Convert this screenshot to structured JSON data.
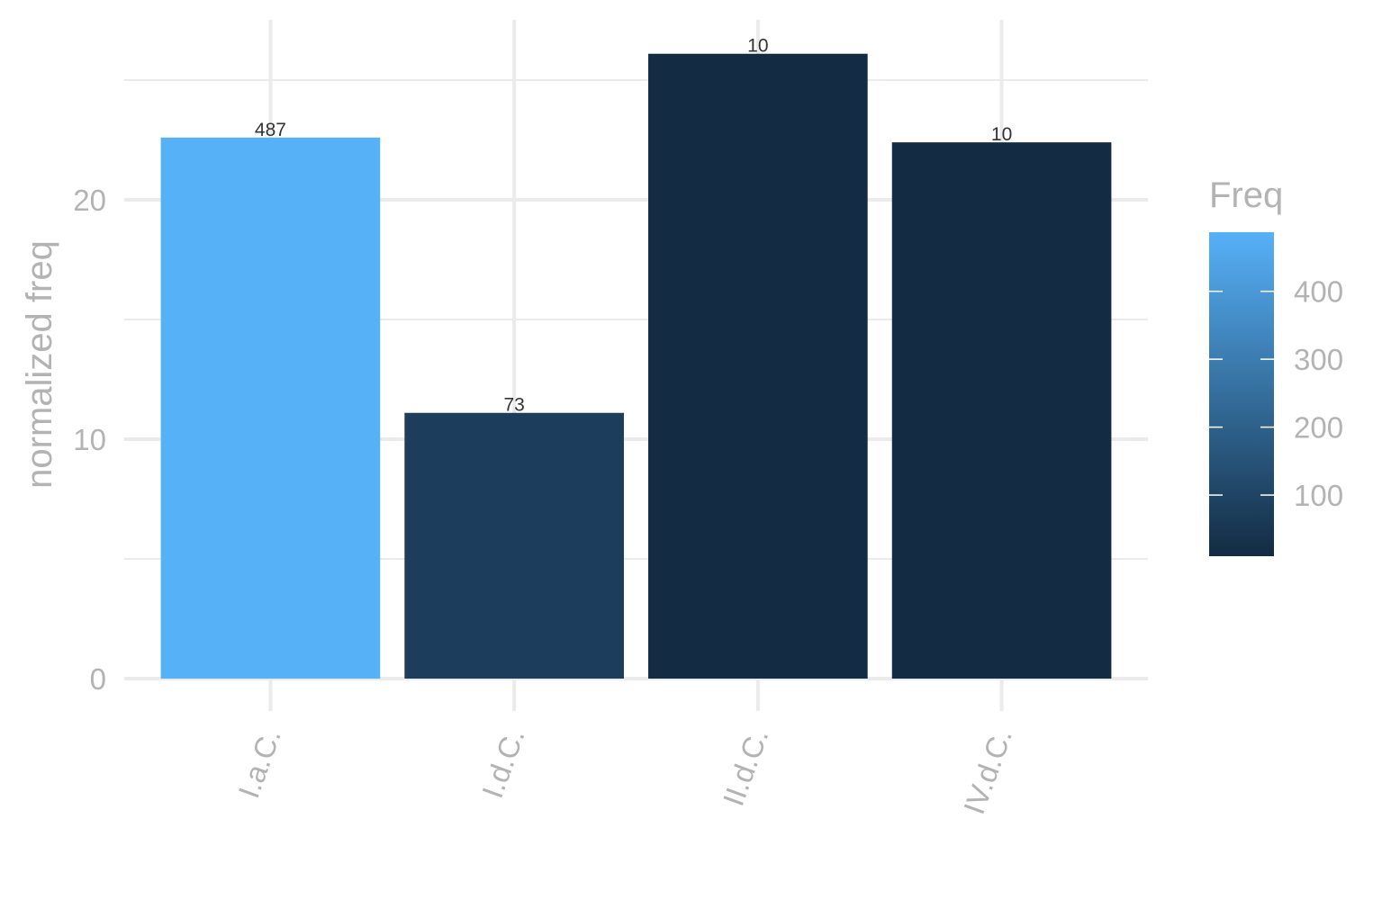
{
  "chart_data": {
    "type": "bar",
    "categories": [
      "I.a.C.",
      "I.d.C.",
      "II.d.C.",
      "IV.d.C."
    ],
    "values": [
      22.6,
      11.1,
      26.1,
      22.4
    ],
    "freq": [
      487,
      73,
      10,
      10
    ],
    "data_labels": [
      "487",
      "73",
      "10",
      "10"
    ],
    "xlabel": "",
    "ylabel": "normalized freq",
    "ylim": [
      0,
      27.5
    ],
    "yticks": [
      0,
      10,
      20
    ],
    "yminor": [
      5,
      15,
      25
    ],
    "grid": true,
    "legend": {
      "title": "Freq",
      "position": "right",
      "type": "colorbar",
      "range": [
        10,
        487
      ],
      "ticks": [
        100,
        200,
        300,
        400
      ],
      "tick_labels": [
        "100",
        "200",
        "300",
        "400"
      ],
      "color_low": "#132B43",
      "color_high": "#56B1F7"
    }
  }
}
